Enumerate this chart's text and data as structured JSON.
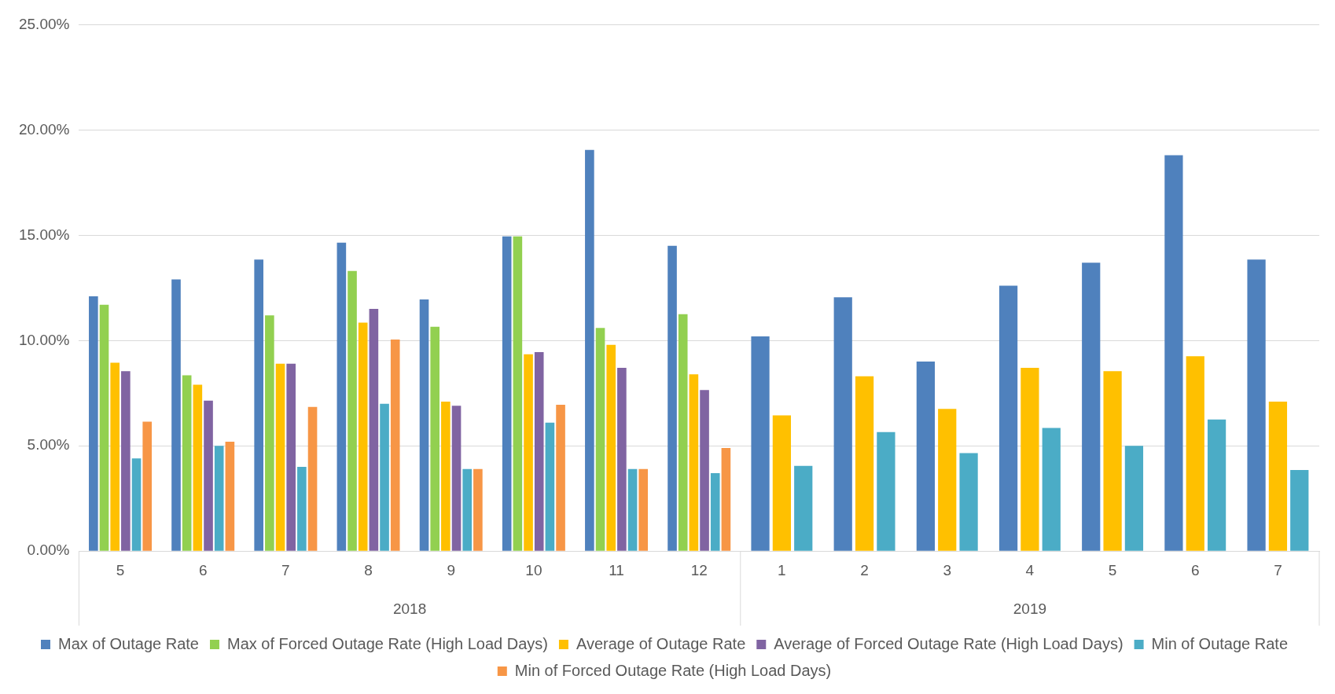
{
  "chart_data": {
    "type": "bar",
    "categories": [
      "5",
      "6",
      "7",
      "8",
      "9",
      "10",
      "11",
      "12",
      "1",
      "2",
      "3",
      "4",
      "5",
      "6",
      "7"
    ],
    "annotations": [
      "2018",
      "2019"
    ],
    "series": [
      {
        "name": "Max of Outage Rate",
        "color": "#4f81bd",
        "values": [
          12.1,
          12.9,
          13.85,
          14.65,
          11.95,
          14.95,
          19.05,
          14.5,
          10.2,
          12.05,
          9.0,
          12.6,
          13.7,
          18.8,
          13.85
        ]
      },
      {
        "name": "Max of Forced Outage Rate (High Load Days)",
        "color": "#92d050",
        "values": [
          11.7,
          8.35,
          11.2,
          13.3,
          10.65,
          14.95,
          10.6,
          11.25,
          null,
          null,
          null,
          null,
          null,
          null,
          null
        ]
      },
      {
        "name": "Average of Outage Rate",
        "color": "#ffc000",
        "values": [
          8.95,
          7.9,
          8.9,
          10.85,
          7.1,
          9.35,
          9.8,
          8.4,
          6.45,
          8.3,
          6.75,
          8.7,
          8.55,
          9.25,
          7.1
        ]
      },
      {
        "name": "Average of Forced Outage Rate (High Load Days)",
        "color": "#8064a2",
        "values": [
          8.55,
          7.15,
          8.9,
          11.5,
          6.9,
          9.45,
          8.7,
          7.65,
          null,
          null,
          null,
          null,
          null,
          null,
          null
        ]
      },
      {
        "name": "Min of Outage Rate",
        "color": "#4bacc6",
        "values": [
          4.4,
          5.0,
          4.0,
          7.0,
          3.9,
          6.1,
          3.9,
          3.7,
          4.05,
          5.65,
          4.65,
          5.85,
          5.0,
          6.25,
          3.85
        ]
      },
      {
        "name": "Min of Forced Outage Rate (High Load Days)",
        "color": "#f79646",
        "values": [
          6.15,
          5.2,
          6.85,
          10.05,
          3.9,
          6.95,
          3.9,
          4.9,
          null,
          null,
          null,
          null,
          null,
          null,
          null
        ]
      }
    ],
    "ylim": [
      0,
      25
    ],
    "yticks": [
      {
        "value": 0,
        "label": "0.00%"
      },
      {
        "value": 5,
        "label": "5.00%"
      },
      {
        "value": 10,
        "label": "10.00%"
      },
      {
        "value": 15,
        "label": "15.00%"
      },
      {
        "value": 20,
        "label": "20.00%"
      },
      {
        "value": 25,
        "label": "25.00%"
      }
    ],
    "grid": "y",
    "legend": "bottom"
  }
}
